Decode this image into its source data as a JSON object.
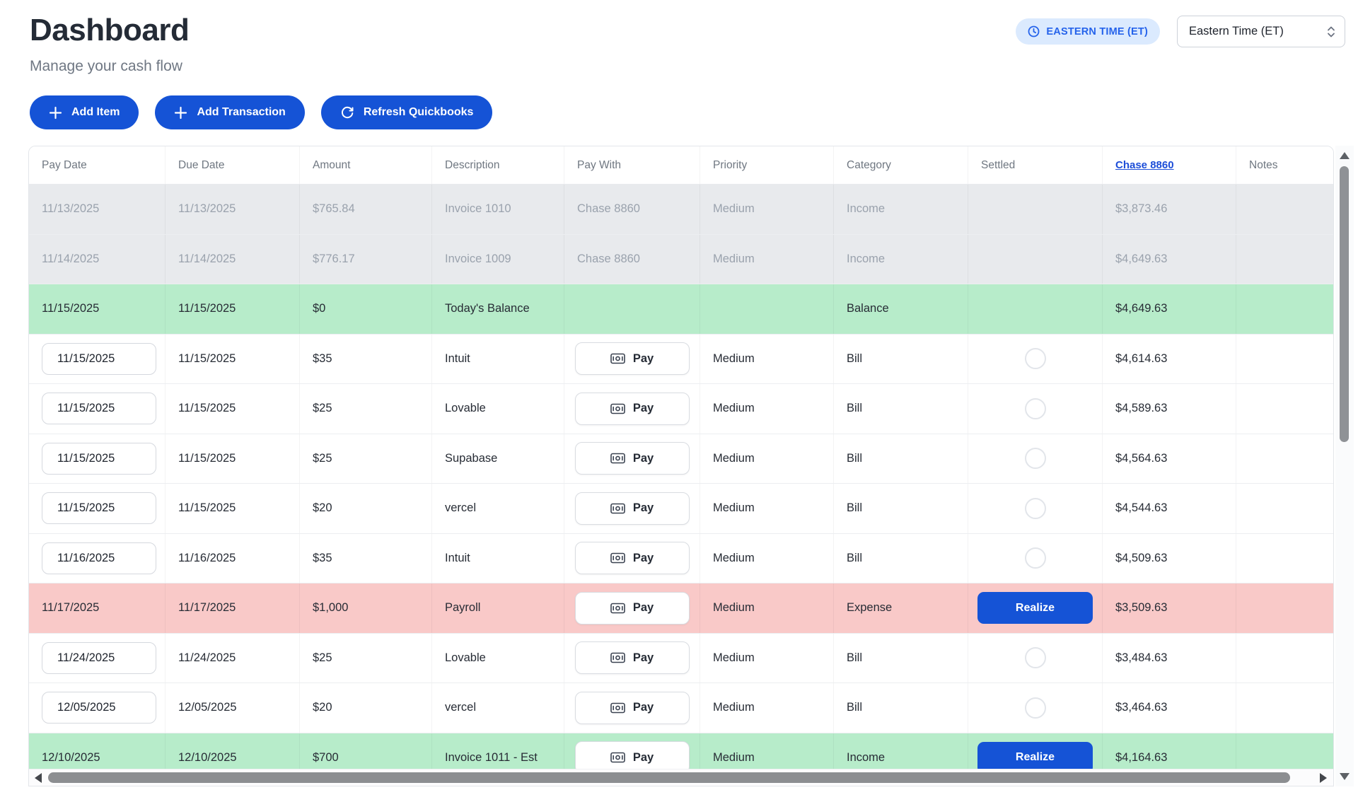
{
  "page": {
    "title": "Dashboard",
    "subtitle": "Manage your cash flow"
  },
  "header": {
    "timezone_badge": "EASTERN TIME (ET)",
    "timezone_select": "Eastern Time (ET)"
  },
  "toolbar": {
    "add_item": "Add Item",
    "add_transaction": "Add Transaction",
    "refresh_quickbooks": "Refresh Quickbooks"
  },
  "table": {
    "columns": [
      "Pay Date",
      "Due Date",
      "Amount",
      "Description",
      "Pay With",
      "Priority",
      "Category",
      "Settled",
      "Chase 8860",
      "Notes"
    ],
    "pay_button_label": "Pay",
    "realize_button_label": "Realize",
    "rows": [
      {
        "type": "past",
        "pay_date": "11/13/2025",
        "pay_date_editable": false,
        "due_date": "11/13/2025",
        "amount": "$765.84",
        "description": "Invoice 1010",
        "pay_with": "Chase 8860",
        "priority": "Medium",
        "category": "Income",
        "settled": "",
        "balance": "$3,873.46",
        "notes": ""
      },
      {
        "type": "past",
        "pay_date": "11/14/2025",
        "pay_date_editable": false,
        "due_date": "11/14/2025",
        "amount": "$776.17",
        "description": "Invoice 1009",
        "pay_with": "Chase 8860",
        "priority": "Medium",
        "category": "Income",
        "settled": "",
        "balance": "$4,649.63",
        "notes": ""
      },
      {
        "type": "balance",
        "pay_date": "11/15/2025",
        "pay_date_editable": false,
        "due_date": "11/15/2025",
        "amount": "$0",
        "description": "Today's Balance",
        "pay_with": "",
        "priority": "",
        "category": "Balance",
        "settled": "",
        "balance": "$4,649.63",
        "notes": ""
      },
      {
        "type": "bill",
        "pay_date": "11/15/2025",
        "pay_date_editable": true,
        "due_date": "11/15/2025",
        "amount": "$35",
        "description": "Intuit",
        "pay_with": "pay-button",
        "priority": "Medium",
        "category": "Bill",
        "settled": "unchecked-circle",
        "balance": "$4,614.63",
        "notes": ""
      },
      {
        "type": "bill",
        "pay_date": "11/15/2025",
        "pay_date_editable": true,
        "due_date": "11/15/2025",
        "amount": "$25",
        "description": "Lovable",
        "pay_with": "pay-button",
        "priority": "Medium",
        "category": "Bill",
        "settled": "unchecked-circle",
        "balance": "$4,589.63",
        "notes": ""
      },
      {
        "type": "bill",
        "pay_date": "11/15/2025",
        "pay_date_editable": true,
        "due_date": "11/15/2025",
        "amount": "$25",
        "description": "Supabase",
        "pay_with": "pay-button",
        "priority": "Medium",
        "category": "Bill",
        "settled": "unchecked-circle",
        "balance": "$4,564.63",
        "notes": ""
      },
      {
        "type": "bill",
        "pay_date": "11/15/2025",
        "pay_date_editable": true,
        "due_date": "11/15/2025",
        "amount": "$20",
        "description": "vercel",
        "pay_with": "pay-button",
        "priority": "Medium",
        "category": "Bill",
        "settled": "unchecked-circle",
        "balance": "$4,544.63",
        "notes": ""
      },
      {
        "type": "bill",
        "pay_date": "11/16/2025",
        "pay_date_editable": true,
        "due_date": "11/16/2025",
        "amount": "$35",
        "description": "Intuit",
        "pay_with": "pay-button",
        "priority": "Medium",
        "category": "Bill",
        "settled": "unchecked-circle",
        "balance": "$4,509.63",
        "notes": ""
      },
      {
        "type": "expense",
        "pay_date": "11/17/2025",
        "pay_date_editable": false,
        "due_date": "11/17/2025",
        "amount": "$1,000",
        "description": "Payroll",
        "pay_with": "pay-button",
        "priority": "Medium",
        "category": "Expense",
        "settled": "realize-button",
        "balance": "$3,509.63",
        "notes": ""
      },
      {
        "type": "bill",
        "pay_date": "11/24/2025",
        "pay_date_editable": true,
        "due_date": "11/24/2025",
        "amount": "$25",
        "description": "Lovable",
        "pay_with": "pay-button",
        "priority": "Medium",
        "category": "Bill",
        "settled": "unchecked-circle",
        "balance": "$3,484.63",
        "notes": ""
      },
      {
        "type": "bill",
        "pay_date": "12/05/2025",
        "pay_date_editable": true,
        "due_date": "12/05/2025",
        "amount": "$20",
        "description": "vercel",
        "pay_with": "pay-button",
        "priority": "Medium",
        "category": "Bill",
        "settled": "unchecked-circle",
        "balance": "$3,464.63",
        "notes": ""
      },
      {
        "type": "income",
        "pay_date": "12/10/2025",
        "pay_date_editable": false,
        "due_date": "12/10/2025",
        "amount": "$700",
        "description": "Invoice 1011 - Est",
        "pay_with": "pay-button",
        "priority": "Medium",
        "category": "Income",
        "settled": "realize-button",
        "balance": "$4,164.63",
        "notes": ""
      }
    ]
  },
  "colors": {
    "primary_blue": "#1553d6",
    "link_blue": "#1d4ed8",
    "badge_bg": "#dbeafe",
    "badge_text": "#2563eb",
    "row_gray_bg": "#e8eaed",
    "row_gray_text": "#9aa2ad",
    "row_green_bg": "#b7ecca",
    "row_red_bg": "#f9c9c8"
  }
}
